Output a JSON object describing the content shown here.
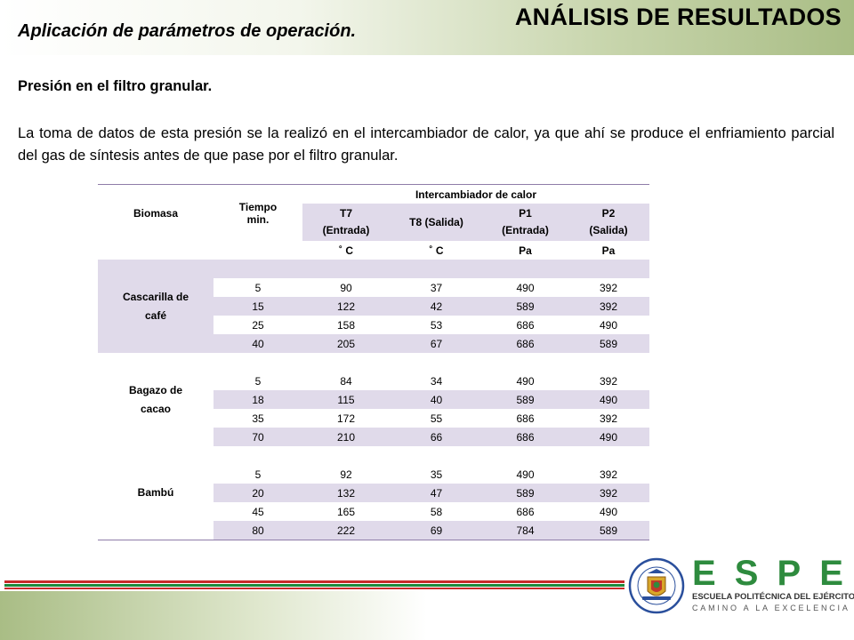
{
  "header": {
    "title": "ANÁLISIS DE RESULTADOS",
    "subtitle": "Aplicación de parámetros de operación."
  },
  "section": {
    "heading": "Presión en el filtro granular.",
    "paragraph": "La toma de datos de esta presión se la realizó en el intercambiador de calor, ya que ahí se produce el enfriamiento parcial del gas de síntesis antes de que pase por el filtro granular."
  },
  "table": {
    "group_header": "Intercambiador de calor",
    "col_biomasa": "Biomasa",
    "col_tiempo_line1": "Tiempo",
    "col_tiempo_line2": "min.",
    "col_t7_line1": "T7",
    "col_t7_line2": "(Entrada)",
    "col_t8": "T8 (Salida)",
    "col_p1_line1": "P1",
    "col_p1_line2": "(Entrada)",
    "col_p2_line1": "P2",
    "col_p2_line2": "(Salida)",
    "units": [
      "˚ C",
      "˚ C",
      "Pa",
      "Pa"
    ],
    "groups": [
      {
        "name_line1": "Cascarilla de",
        "name_line2": "café",
        "rows": [
          [
            "5",
            "90",
            "37",
            "490",
            "392"
          ],
          [
            "15",
            "122",
            "42",
            "589",
            "392"
          ],
          [
            "25",
            "158",
            "53",
            "686",
            "490"
          ],
          [
            "40",
            "205",
            "67",
            "686",
            "589"
          ]
        ]
      },
      {
        "name_line1": "Bagazo de",
        "name_line2": "cacao",
        "rows": [
          [
            "5",
            "84",
            "34",
            "490",
            "392"
          ],
          [
            "18",
            "115",
            "40",
            "589",
            "490"
          ],
          [
            "35",
            "172",
            "55",
            "686",
            "392"
          ],
          [
            "70",
            "210",
            "66",
            "686",
            "490"
          ]
        ]
      },
      {
        "name_line1": "Bambú",
        "name_line2": "",
        "rows": [
          [
            "5",
            "92",
            "35",
            "490",
            "392"
          ],
          [
            "20",
            "132",
            "47",
            "589",
            "392"
          ],
          [
            "45",
            "165",
            "58",
            "686",
            "490"
          ],
          [
            "80",
            "222",
            "69",
            "784",
            "589"
          ]
        ]
      }
    ]
  },
  "logo": {
    "letters": [
      "E",
      "S",
      "P",
      "E"
    ],
    "line1": "ESCUELA POLITÉCNICA DEL EJÉRCITO",
    "line2": "CAMINO A LA EXCELENCIA",
    "seal_text_top": "ESCUELA POLITÉCNICA DEL EJÉRCITO",
    "seal_text_bottom": "ECUADOR"
  },
  "colors": {
    "table_shade": "#e0daea",
    "table_border": "#8e7ca8",
    "logo_green": "#2e8b3e",
    "stripe_red": "#c72a2a",
    "stripe_green": "#1c8a3c",
    "band_green": "#a9bd85"
  }
}
